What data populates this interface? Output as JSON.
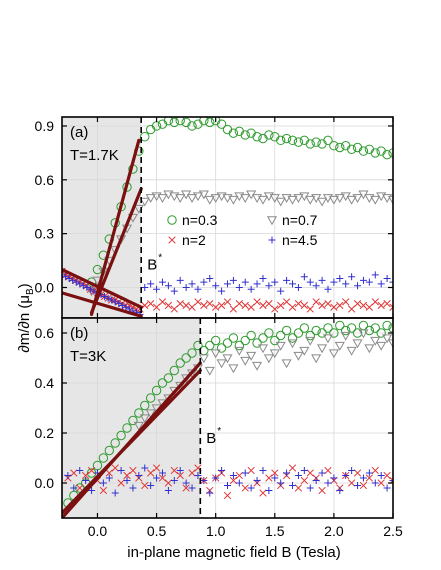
{
  "chart_data": [
    {
      "panel": "(a)",
      "type": "scatter",
      "label": "(a)",
      "temperature": "T=1.7K",
      "marker_label": "B",
      "marker_sup": "*",
      "bstar": 0.37,
      "xlim": [
        -0.3,
        2.5
      ],
      "ylim": [
        -0.17,
        0.95
      ],
      "yticks": [
        "0.0",
        "0.3",
        "0.6",
        "0.9"
      ],
      "ytick_values": [
        0.0,
        0.3,
        0.6,
        0.9
      ],
      "shade": [
        -0.3,
        0.37
      ],
      "legend": "center-right",
      "series": [
        {
          "name": "n=0.3",
          "marker": "circle",
          "color": "#2e9a2e",
          "x": [
            -0.05,
            0.0,
            0.05,
            0.1,
            0.15,
            0.2,
            0.25,
            0.3,
            0.35,
            0.4,
            0.45,
            0.5,
            0.55,
            0.6,
            0.65,
            0.7,
            0.75,
            0.8,
            0.85,
            0.9,
            0.95,
            1.0,
            1.05,
            1.1,
            1.15,
            1.2,
            1.25,
            1.3,
            1.35,
            1.4,
            1.45,
            1.5,
            1.55,
            1.6,
            1.65,
            1.7,
            1.75,
            1.8,
            1.85,
            1.9,
            1.95,
            2.0,
            2.05,
            2.1,
            2.15,
            2.2,
            2.25,
            2.3,
            2.35,
            2.4,
            2.45,
            2.5
          ],
          "y": [
            0.03,
            0.1,
            0.18,
            0.27,
            0.36,
            0.45,
            0.56,
            0.66,
            0.76,
            0.84,
            0.88,
            0.9,
            0.91,
            0.93,
            0.92,
            0.93,
            0.92,
            0.9,
            0.91,
            0.93,
            0.92,
            0.93,
            0.91,
            0.88,
            0.86,
            0.87,
            0.85,
            0.86,
            0.84,
            0.83,
            0.85,
            0.84,
            0.82,
            0.83,
            0.82,
            0.81,
            0.82,
            0.8,
            0.81,
            0.8,
            0.82,
            0.79,
            0.78,
            0.79,
            0.77,
            0.78,
            0.76,
            0.77,
            0.75,
            0.76,
            0.74,
            0.75
          ]
        },
        {
          "name": "n=0.7",
          "marker": "triangle-down",
          "color": "#8a8a8a",
          "x": [
            -0.05,
            0.0,
            0.05,
            0.1,
            0.15,
            0.2,
            0.25,
            0.3,
            0.35,
            0.4,
            0.45,
            0.5,
            0.55,
            0.6,
            0.65,
            0.7,
            0.75,
            0.8,
            0.85,
            0.9,
            0.95,
            1.0,
            1.05,
            1.1,
            1.15,
            1.2,
            1.25,
            1.3,
            1.35,
            1.4,
            1.45,
            1.5,
            1.55,
            1.6,
            1.65,
            1.7,
            1.75,
            1.8,
            1.85,
            1.9,
            1.95,
            2.0,
            2.05,
            2.1,
            2.15,
            2.2,
            2.25,
            2.3,
            2.35,
            2.4,
            2.45,
            2.5
          ],
          "y": [
            -0.02,
            0.04,
            0.09,
            0.15,
            0.21,
            0.27,
            0.33,
            0.39,
            0.44,
            0.48,
            0.5,
            0.51,
            0.5,
            0.52,
            0.51,
            0.5,
            0.52,
            0.5,
            0.51,
            0.52,
            0.49,
            0.5,
            0.51,
            0.5,
            0.49,
            0.51,
            0.5,
            0.52,
            0.5,
            0.49,
            0.51,
            0.5,
            0.48,
            0.5,
            0.49,
            0.5,
            0.51,
            0.49,
            0.5,
            0.48,
            0.5,
            0.49,
            0.5,
            0.51,
            0.49,
            0.5,
            0.52,
            0.5,
            0.49,
            0.51,
            0.5,
            0.49
          ]
        },
        {
          "name": "n=2",
          "marker": "x",
          "color": "#e03030",
          "x": [
            -0.3,
            -0.27,
            -0.24,
            -0.21,
            -0.18,
            -0.15,
            -0.12,
            -0.09,
            -0.06,
            -0.03,
            0.0,
            0.03,
            0.06,
            0.09,
            0.12,
            0.15,
            0.18,
            0.21,
            0.24,
            0.27,
            0.3,
            0.33,
            0.36,
            0.4,
            0.45,
            0.5,
            0.55,
            0.6,
            0.65,
            0.7,
            0.75,
            0.8,
            0.85,
            0.9,
            0.95,
            1.0,
            1.05,
            1.1,
            1.15,
            1.2,
            1.25,
            1.3,
            1.35,
            1.4,
            1.45,
            1.5,
            1.55,
            1.6,
            1.65,
            1.7,
            1.75,
            1.8,
            1.85,
            1.9,
            1.95,
            2.0,
            2.05,
            2.1,
            2.15,
            2.2,
            2.25,
            2.3,
            2.35,
            2.4,
            2.45,
            2.5
          ],
          "y": [
            0.09,
            0.07,
            0.06,
            0.05,
            0.04,
            0.03,
            0.02,
            0.01,
            -0.01,
            -0.02,
            -0.03,
            -0.04,
            -0.05,
            -0.06,
            -0.07,
            -0.07,
            -0.08,
            -0.09,
            -0.1,
            -0.1,
            -0.11,
            -0.12,
            -0.12,
            -0.1,
            -0.09,
            -0.11,
            -0.08,
            -0.1,
            -0.12,
            -0.09,
            -0.1,
            -0.11,
            -0.08,
            -0.1,
            -0.09,
            -0.11,
            -0.1,
            -0.08,
            -0.12,
            -0.09,
            -0.1,
            -0.11,
            -0.08,
            -0.1,
            -0.09,
            -0.12,
            -0.1,
            -0.08,
            -0.11,
            -0.09,
            -0.1,
            -0.12,
            -0.08,
            -0.1,
            -0.09,
            -0.11,
            -0.1,
            -0.08,
            -0.12,
            -0.09,
            -0.1,
            -0.11,
            -0.08,
            -0.1,
            -0.09,
            -0.11
          ]
        },
        {
          "name": "n=4.5",
          "marker": "plus",
          "color": "#3030d0",
          "x": [
            -0.3,
            -0.27,
            -0.24,
            -0.21,
            -0.18,
            -0.15,
            -0.12,
            -0.09,
            -0.06,
            -0.03,
            0.0,
            0.03,
            0.06,
            0.09,
            0.12,
            0.15,
            0.18,
            0.21,
            0.24,
            0.27,
            0.3,
            0.33,
            0.36,
            0.4,
            0.45,
            0.5,
            0.55,
            0.6,
            0.65,
            0.7,
            0.75,
            0.8,
            0.85,
            0.9,
            0.95,
            1.0,
            1.05,
            1.1,
            1.15,
            1.2,
            1.25,
            1.3,
            1.35,
            1.4,
            1.45,
            1.5,
            1.55,
            1.6,
            1.65,
            1.7,
            1.75,
            1.8,
            1.85,
            1.9,
            1.95,
            2.0,
            2.05,
            2.1,
            2.15,
            2.2,
            2.25,
            2.3,
            2.35,
            2.4,
            2.45,
            2.5
          ],
          "y": [
            0.07,
            0.06,
            0.05,
            0.04,
            0.03,
            0.02,
            0.01,
            0.0,
            -0.01,
            -0.02,
            -0.03,
            -0.04,
            -0.05,
            -0.06,
            -0.07,
            -0.08,
            -0.09,
            -0.1,
            -0.11,
            -0.12,
            -0.13,
            -0.14,
            -0.15,
            0.0,
            0.02,
            -0.01,
            0.03,
            0.01,
            -0.02,
            0.04,
            0.0,
            0.02,
            -0.01,
            0.03,
            0.05,
            0.01,
            -0.02,
            0.02,
            0.04,
            0.0,
            0.03,
            -0.01,
            0.02,
            0.05,
            0.01,
            0.03,
            -0.02,
            0.04,
            0.02,
            0.0,
            0.06,
            0.03,
            0.01,
            0.04,
            -0.01,
            0.03,
            0.05,
            0.02,
            0.06,
            0.01,
            0.04,
            0.03,
            0.07,
            0.02,
            0.05,
            0.03
          ]
        }
      ],
      "fit_lines": [
        {
          "x": [
            -0.05,
            0.35
          ],
          "y": [
            -0.15,
            0.82
          ]
        },
        {
          "x": [
            -0.05,
            0.37
          ],
          "y": [
            -0.14,
            0.55
          ]
        },
        {
          "x": [
            -0.3,
            0.37
          ],
          "y": [
            0.1,
            -0.11
          ]
        },
        {
          "x": [
            -0.3,
            0.37
          ],
          "y": [
            -0.03,
            -0.16
          ]
        }
      ]
    },
    {
      "panel": "(b)",
      "type": "scatter",
      "label": "(b)",
      "temperature": "T=3K",
      "marker_label": "B",
      "marker_sup": "*",
      "bstar": 0.87,
      "xlim": [
        -0.3,
        2.5
      ],
      "ylim": [
        -0.14,
        0.66
      ],
      "yticks": [
        "0.0",
        "0.2",
        "0.4",
        "0.6"
      ],
      "ytick_values": [
        0.0,
        0.2,
        0.4,
        0.6
      ],
      "xticks": [
        "0.0",
        "0.5",
        "1.0",
        "1.5",
        "2.0",
        "2.5"
      ],
      "xtick_values": [
        0.0,
        0.5,
        1.0,
        1.5,
        2.0,
        2.5
      ],
      "shade": [
        -0.3,
        0.87
      ],
      "series": [
        {
          "name": "n=0.3",
          "marker": "circle",
          "color": "#2e9a2e",
          "x": [
            -0.25,
            -0.2,
            -0.15,
            -0.1,
            -0.05,
            0.0,
            0.05,
            0.1,
            0.15,
            0.2,
            0.25,
            0.3,
            0.35,
            0.4,
            0.45,
            0.5,
            0.55,
            0.6,
            0.65,
            0.7,
            0.75,
            0.8,
            0.85,
            0.9,
            0.95,
            1.0,
            1.05,
            1.1,
            1.15,
            1.2,
            1.25,
            1.3,
            1.35,
            1.4,
            1.45,
            1.5,
            1.55,
            1.6,
            1.65,
            1.7,
            1.75,
            1.8,
            1.85,
            1.9,
            1.95,
            2.0,
            2.05,
            2.1,
            2.15,
            2.2,
            2.25,
            2.3,
            2.35,
            2.4,
            2.45,
            2.5
          ],
          "y": [
            -0.08,
            -0.05,
            -0.02,
            0.0,
            0.04,
            0.07,
            0.1,
            0.13,
            0.16,
            0.19,
            0.22,
            0.25,
            0.28,
            0.31,
            0.34,
            0.37,
            0.4,
            0.42,
            0.45,
            0.48,
            0.5,
            0.52,
            0.55,
            0.53,
            0.55,
            0.57,
            0.54,
            0.56,
            0.58,
            0.55,
            0.57,
            0.59,
            0.56,
            0.58,
            0.6,
            0.57,
            0.59,
            0.61,
            0.58,
            0.6,
            0.62,
            0.59,
            0.61,
            0.6,
            0.62,
            0.6,
            0.63,
            0.61,
            0.62,
            0.6,
            0.63,
            0.61,
            0.62,
            0.6,
            0.63,
            0.62
          ]
        },
        {
          "name": "n=0.7",
          "marker": "triangle-down",
          "color": "#8a8a8a",
          "x": [
            0.35,
            0.4,
            0.45,
            0.5,
            0.55,
            0.6,
            0.65,
            0.7,
            0.75,
            0.8,
            0.85,
            0.9,
            0.95,
            1.0,
            1.05,
            1.1,
            1.15,
            1.2,
            1.25,
            1.3,
            1.35,
            1.4,
            1.45,
            1.5,
            1.55,
            1.6,
            1.65,
            1.7,
            1.75,
            1.8,
            1.85,
            1.9,
            1.95,
            2.0,
            2.05,
            2.1,
            2.15,
            2.2,
            2.25,
            2.3,
            2.35,
            2.4,
            2.45,
            2.5
          ],
          "y": [
            0.23,
            0.26,
            0.28,
            0.3,
            0.32,
            0.34,
            0.37,
            0.39,
            0.42,
            0.44,
            0.46,
            0.5,
            0.45,
            0.52,
            0.48,
            0.5,
            0.46,
            0.53,
            0.49,
            0.51,
            0.47,
            0.54,
            0.5,
            0.52,
            0.55,
            0.48,
            0.56,
            0.51,
            0.53,
            0.57,
            0.5,
            0.54,
            0.58,
            0.52,
            0.55,
            0.59,
            0.53,
            0.56,
            0.6,
            0.54,
            0.57,
            0.55,
            0.58,
            0.56
          ]
        },
        {
          "name": "n=2",
          "marker": "x",
          "color": "#e03030",
          "x": [
            -0.25,
            -0.2,
            -0.15,
            -0.1,
            -0.05,
            0.0,
            0.05,
            0.1,
            0.15,
            0.2,
            0.25,
            0.3,
            0.35,
            0.4,
            0.45,
            0.5,
            0.55,
            0.6,
            0.65,
            0.7,
            0.75,
            0.8,
            0.85,
            0.9,
            0.95,
            1.0,
            1.05,
            1.1,
            1.15,
            1.2,
            1.25,
            1.3,
            1.35,
            1.4,
            1.45,
            1.5,
            1.55,
            1.6,
            1.65,
            1.7,
            1.75,
            1.8,
            1.85,
            1.9,
            1.95,
            2.0,
            2.05,
            2.1,
            2.15,
            2.2,
            2.25,
            2.3,
            2.35,
            2.4,
            2.45,
            2.5
          ],
          "y": [
            0.02,
            0.04,
            -0.02,
            0.03,
            0.05,
            0.01,
            -0.03,
            0.04,
            0.06,
            0.0,
            0.03,
            0.05,
            0.02,
            -0.01,
            0.04,
            0.06,
            0.02,
            0.0,
            0.05,
            0.03,
            -0.02,
            0.04,
            0.06,
            0.01,
            -0.03,
            0.02,
            0.04,
            -0.05,
            0.01,
            0.03,
            -0.02,
            0.05,
            0.0,
            -0.04,
            0.02,
            0.04,
            -0.01,
            0.03,
            0.06,
            -0.02,
            0.01,
            0.04,
            0.02,
            -0.03,
            0.05,
            0.01,
            -0.02,
            0.03,
            0.0,
            0.04,
            -0.01,
            0.02,
            0.05,
            0.0,
            0.03,
            0.01
          ]
        },
        {
          "name": "n=4.5",
          "marker": "plus",
          "color": "#3030d0",
          "x": [
            -0.25,
            -0.2,
            -0.15,
            -0.1,
            -0.05,
            0.0,
            0.05,
            0.1,
            0.15,
            0.2,
            0.25,
            0.3,
            0.35,
            0.4,
            0.45,
            0.5,
            0.55,
            0.6,
            0.65,
            0.7,
            0.75,
            0.8,
            0.85,
            0.9,
            0.95,
            1.0,
            1.05,
            1.1,
            1.15,
            1.2,
            1.25,
            1.3,
            1.35,
            1.4,
            1.45,
            1.5,
            1.55,
            1.6,
            1.65,
            1.7,
            1.75,
            1.8,
            1.85,
            1.9,
            1.95,
            2.0,
            2.05,
            2.1,
            2.15,
            2.2,
            2.25,
            2.3,
            2.35,
            2.4,
            2.45,
            2.5
          ],
          "y": [
            0.03,
            -0.02,
            0.05,
            0.01,
            -0.03,
            0.04,
            0.0,
            0.02,
            -0.04,
            0.05,
            0.01,
            -0.02,
            0.03,
            0.06,
            -0.01,
            0.02,
            0.04,
            -0.03,
            0.01,
            0.05,
            0.0,
            -0.02,
            0.03,
            0.01,
            -0.04,
            0.02,
            0.05,
            -0.01,
            0.03,
            0.0,
            0.04,
            -0.02,
            0.01,
            0.05,
            -0.03,
            0.02,
            0.0,
            0.04,
            -0.01,
            0.03,
            0.05,
            -0.02,
            0.01,
            0.04,
            0.0,
            0.02,
            -0.03,
            0.03,
            0.05,
            -0.01,
            0.02,
            0.04,
            0.0,
            0.03,
            -0.02,
            0.01
          ]
        }
      ],
      "fit_lines": [
        {
          "x": [
            -0.3,
            0.87
          ],
          "y": [
            -0.14,
            0.48
          ]
        },
        {
          "x": [
            -0.3,
            0.87
          ],
          "y": [
            -0.12,
            0.45
          ]
        }
      ]
    }
  ],
  "axes": {
    "xlabel": "in-plane magnetic field B (Tesla)",
    "ylabel_main": "∂m/∂n (μ",
    "ylabel_sub": "B",
    "ylabel_end": ")"
  },
  "colors": {
    "fit": "#7a1010",
    "shade": "#e6e6e6",
    "grid": "#d8d8d8"
  }
}
